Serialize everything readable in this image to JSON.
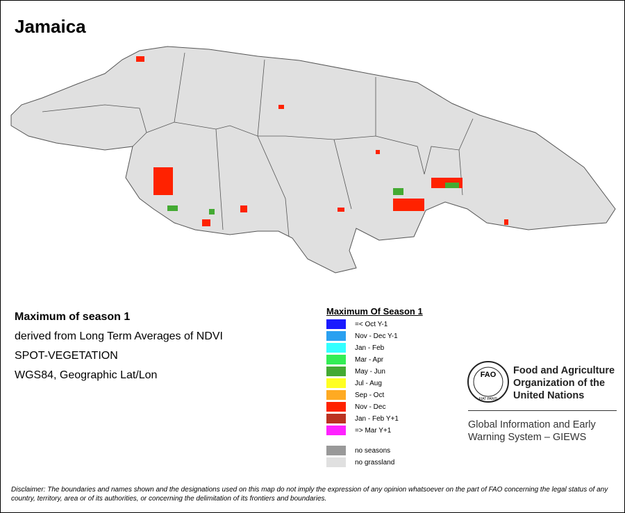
{
  "title": "Jamaica",
  "info": [
    "Maximum of season 1",
    "derived from Long Term Averages of NDVI",
    "SPOT-VEGETATION",
    "WGS84, Geographic Lat/Lon"
  ],
  "legend": {
    "title": "Maximum Of Season 1",
    "items": [
      {
        "label": "=< Oct Y-1",
        "color": "#1a1aff"
      },
      {
        "label": "Nov - Dec Y-1",
        "color": "#2aa0f0"
      },
      {
        "label": "Jan - Feb",
        "color": "#33ffff"
      },
      {
        "label": "Mar - Apr",
        "color": "#33ee55"
      },
      {
        "label": "May - Jun",
        "color": "#44aa33"
      },
      {
        "label": "Jul - Aug",
        "color": "#ffff22"
      },
      {
        "label": "Sep - Oct",
        "color": "#ffaa22"
      },
      {
        "label": "Nov - Dec",
        "color": "#ff2200"
      },
      {
        "label": "Jan - Feb Y+1",
        "color": "#bb3322"
      },
      {
        "label": "=> Mar Y+1",
        "color": "#ff22ff"
      }
    ],
    "extra": [
      {
        "label": "no seasons",
        "color": "#999999"
      },
      {
        "label": "no grassland",
        "color": "#e0e0e0"
      }
    ]
  },
  "org": {
    "logo": "FAO",
    "motto": "FIAT PANIS",
    "name": [
      "Food and Agriculture",
      "Organization of the",
      "United Nations"
    ],
    "system": [
      "Global Information and Early",
      "Warning System – GIEWS"
    ]
  },
  "disclaimer": "Disclaimer: The boundaries and names shown and the designations used on this map do not imply the expression of any opinion whatsoever on the part of FAO concerning the legal status of any country, territory, area or of its authorities, or concerning the delimitation of its frontiers and boundaries."
}
